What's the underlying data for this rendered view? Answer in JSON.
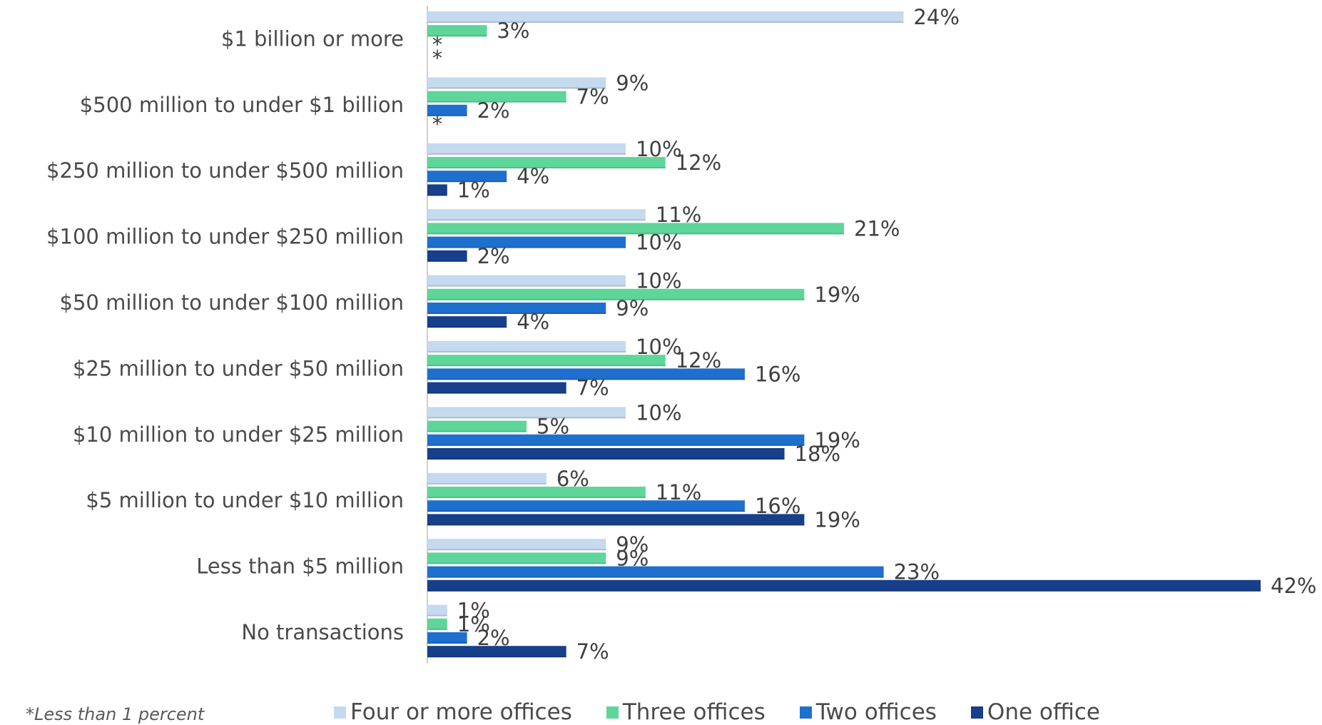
{
  "chart_data": {
    "type": "bar",
    "orientation": "horizontal",
    "categories": [
      "$1 billion or more",
      "$500 million to under $1 billion",
      "$250 million to under $500 million",
      "$100 million to under $250 million",
      "$50 million to under $100 million",
      "$25 million to under $50 million",
      "$10 million to under $25 million",
      "$5 million to under $10 million",
      "Less than $5 million",
      "No transactions"
    ],
    "series": [
      {
        "name": "Four or more offices",
        "color": "#c5d9ef",
        "values": [
          24,
          9,
          10,
          11,
          10,
          10,
          10,
          6,
          9,
          1
        ],
        "labels": [
          "24%",
          "9%",
          "10%",
          "11%",
          "10%",
          "10%",
          "10%",
          "6%",
          "9%",
          "1%"
        ]
      },
      {
        "name": "Three offices",
        "color": "#5ed69a",
        "values": [
          3,
          7,
          12,
          21,
          19,
          12,
          5,
          11,
          9,
          1
        ],
        "labels": [
          "3%",
          "7%",
          "12%",
          "21%",
          "19%",
          "12%",
          "5%",
          "11%",
          "9%",
          "1%"
        ]
      },
      {
        "name": "Two offices",
        "color": "#1f6fcf",
        "values": [
          0,
          2,
          4,
          10,
          9,
          16,
          19,
          16,
          23,
          2
        ],
        "labels": [
          "*",
          "2%",
          "4%",
          "10%",
          "9%",
          "16%",
          "19%",
          "16%",
          "23%",
          "2%"
        ]
      },
      {
        "name": "One office",
        "color": "#173f8a",
        "values": [
          0,
          0,
          1,
          2,
          4,
          7,
          18,
          19,
          42,
          7
        ],
        "labels": [
          "*",
          "*",
          "1%",
          "2%",
          "4%",
          "7%",
          "18%",
          "19%",
          "42%",
          "7%"
        ]
      }
    ],
    "xlim": [
      0,
      42
    ],
    "grid": false,
    "legend_position": "bottom",
    "footnote": "*Less than 1 percent"
  }
}
